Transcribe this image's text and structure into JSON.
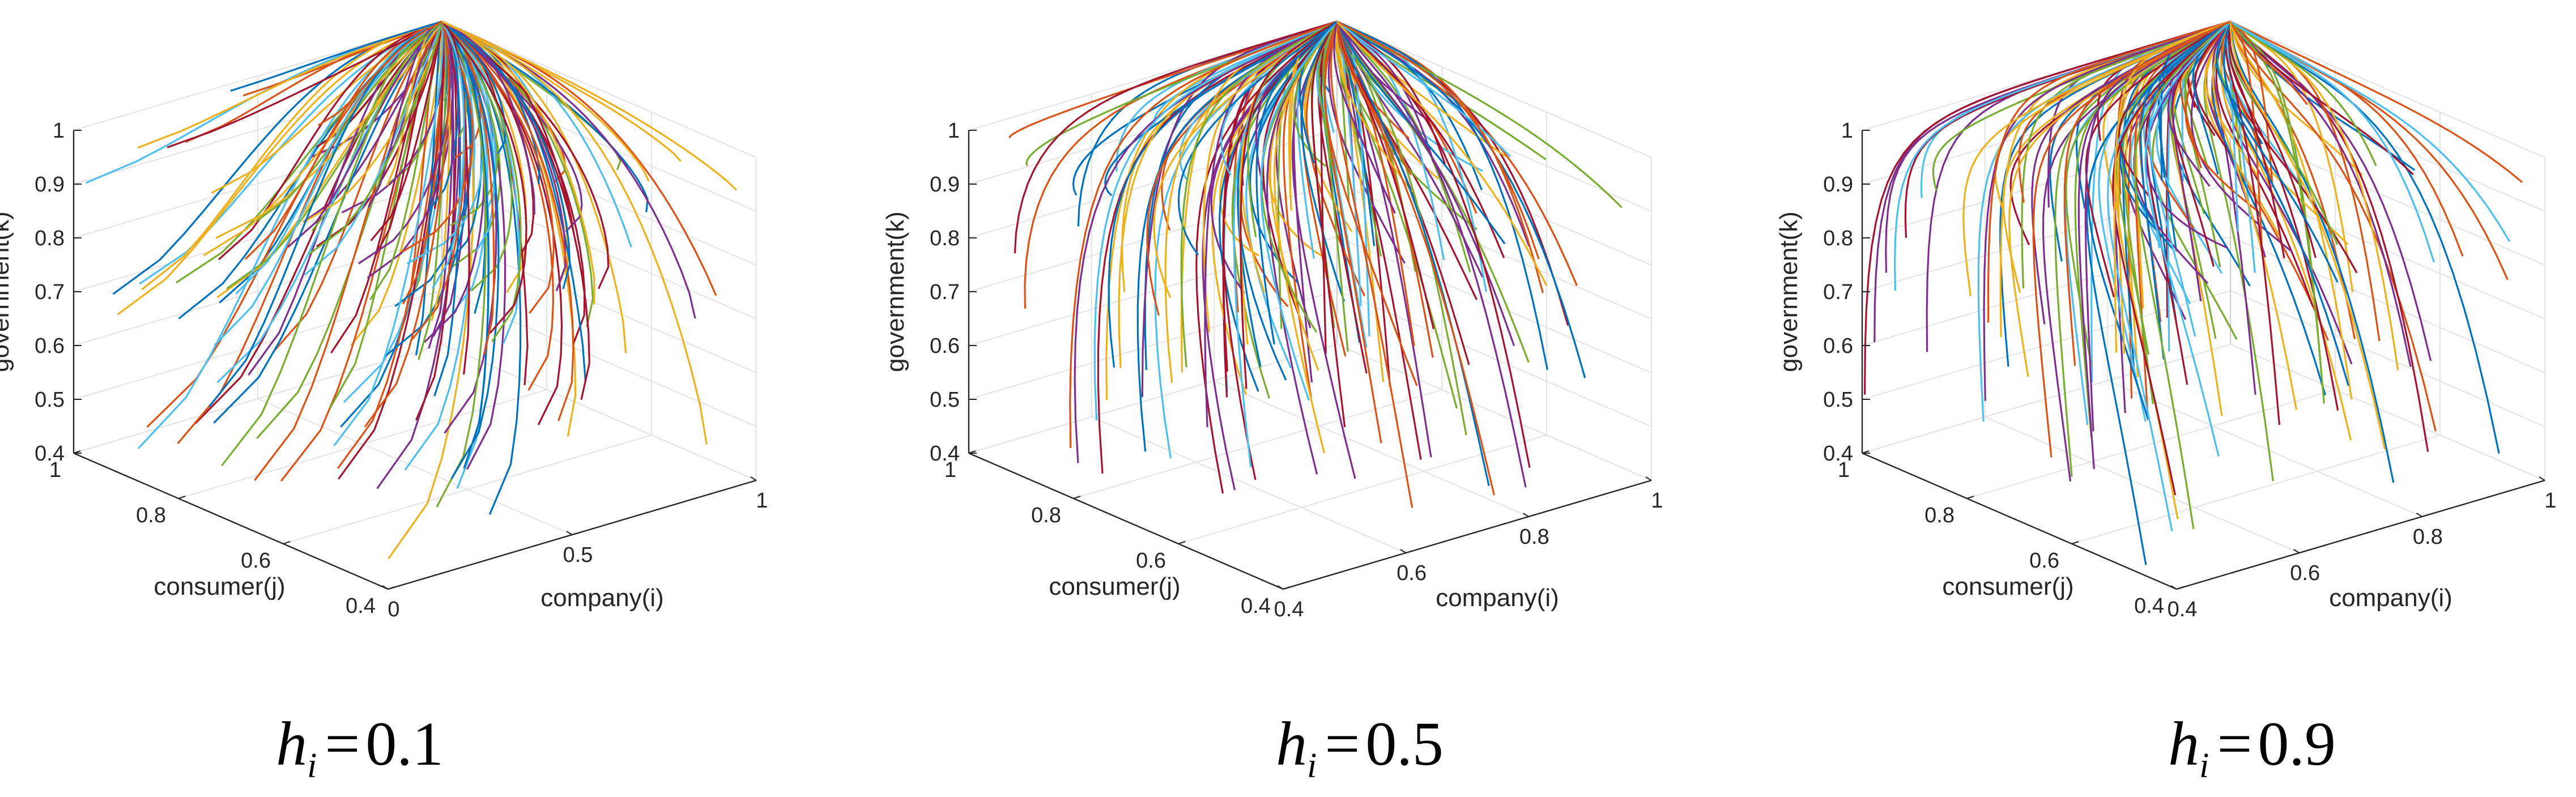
{
  "chart_data": [
    {
      "type": "line",
      "panel_id": "p1",
      "caption": {
        "symbol": "h",
        "subscript": "i",
        "equals": "=",
        "value": "0.1"
      },
      "xlabel": "company(i)",
      "ylabel": "consumer(j)",
      "zlabel": "government(k)",
      "xlim": [
        0,
        1
      ],
      "ylim": [
        0.4,
        1
      ],
      "zlim": [
        0.4,
        1
      ],
      "xticks": [
        0,
        0.5,
        1
      ],
      "xtick_labels": [
        "0",
        "0.5",
        "1"
      ],
      "yticks": [
        0.4,
        0.6,
        0.8,
        1
      ],
      "ytick_labels": [
        "0.4",
        "0.6",
        "0.8",
        "1"
      ],
      "zticks": [
        0.4,
        0.5,
        0.6,
        0.7,
        0.8,
        0.9,
        1
      ],
      "ztick_labels": [
        "0.4",
        "0.5",
        "0.6",
        "0.7",
        "0.8",
        "0.9",
        "1"
      ],
      "grid": true,
      "series_colors": [
        "#0072BD",
        "#D95319",
        "#EDB120",
        "#7E2F8E",
        "#77AC30",
        "#4DBEEE",
        "#A2142F"
      ],
      "endpoint": {
        "x": 1,
        "y": 1,
        "z": 1
      }
    },
    {
      "type": "line",
      "panel_id": "p2",
      "caption": {
        "symbol": "h",
        "subscript": "i",
        "equals": "=",
        "value": "0.5"
      },
      "xlabel": "company(i)",
      "ylabel": "consumer(j)",
      "zlabel": "government(k)",
      "xlim": [
        0.4,
        1
      ],
      "ylim": [
        0.4,
        1
      ],
      "zlim": [
        0.4,
        1
      ],
      "xticks": [
        0.4,
        0.6,
        0.8,
        1
      ],
      "xtick_labels": [
        "0.4",
        "0.6",
        "0.8",
        "1"
      ],
      "yticks": [
        0.4,
        0.6,
        0.8,
        1
      ],
      "ytick_labels": [
        "0.4",
        "0.6",
        "0.8",
        "1"
      ],
      "zticks": [
        0.4,
        0.5,
        0.6,
        0.7,
        0.8,
        0.9,
        1
      ],
      "ztick_labels": [
        "0.4",
        "0.5",
        "0.6",
        "0.7",
        "0.8",
        "0.9",
        "1"
      ],
      "grid": true,
      "series_colors": [
        "#0072BD",
        "#D95319",
        "#EDB120",
        "#7E2F8E",
        "#77AC30",
        "#4DBEEE",
        "#A2142F"
      ],
      "endpoint": {
        "x": 1,
        "y": 1,
        "z": 1
      }
    },
    {
      "type": "line",
      "panel_id": "p3",
      "caption": {
        "symbol": "h",
        "subscript": "i",
        "equals": "=",
        "value": "0.9"
      },
      "xlabel": "company(i)",
      "ylabel": "consumer(j)",
      "zlabel": "government(k)",
      "xlim": [
        0.4,
        1
      ],
      "ylim": [
        0.4,
        1
      ],
      "zlim": [
        0.4,
        1
      ],
      "xticks": [
        0.4,
        0.6,
        0.8,
        1
      ],
      "xtick_labels": [
        "0.4",
        "0.6",
        "0.8",
        "1"
      ],
      "yticks": [
        0.4,
        0.6,
        0.8,
        1
      ],
      "ytick_labels": [
        "0.4",
        "0.6",
        "0.8",
        "1"
      ],
      "zticks": [
        0.4,
        0.5,
        0.6,
        0.7,
        0.8,
        0.9,
        1
      ],
      "ztick_labels": [
        "0.4",
        "0.5",
        "0.6",
        "0.7",
        "0.8",
        "0.9",
        "1"
      ],
      "grid": true,
      "series_colors": [
        "#0072BD",
        "#D95319",
        "#EDB120",
        "#7E2F8E",
        "#77AC30",
        "#4DBEEE",
        "#A2142F"
      ],
      "endpoint": {
        "x": 1,
        "y": 1,
        "z": 1
      }
    }
  ]
}
